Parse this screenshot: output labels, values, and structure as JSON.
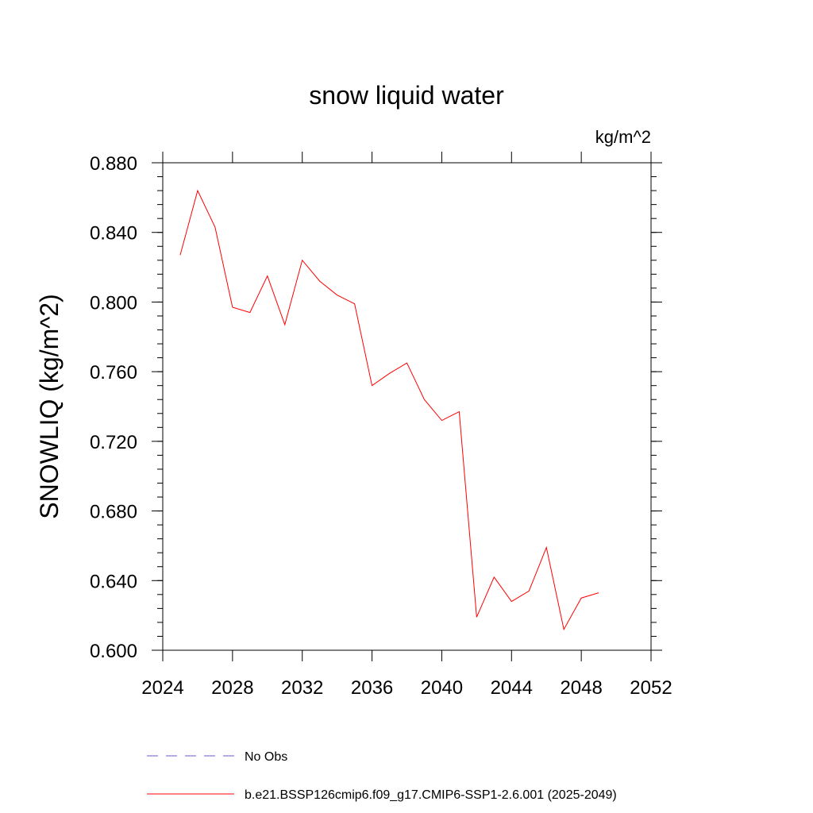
{
  "chart_data": {
    "type": "line",
    "title": "snow liquid water",
    "units_label": "kg/m^2",
    "ylabel": "SNOWLIQ  (kg/m^2)",
    "xlabel": "",
    "xlim": [
      2024,
      2052
    ],
    "ylim": [
      0.6,
      0.88
    ],
    "x_ticks": [
      "2024",
      "2028",
      "2032",
      "2036",
      "2040",
      "2044",
      "2048",
      "2052"
    ],
    "y_ticks": [
      "0.600",
      "0.640",
      "0.680",
      "0.720",
      "0.760",
      "0.800",
      "0.840",
      "0.880"
    ],
    "grid": false,
    "legend_position": "bottom",
    "series": [
      {
        "name": "No Obs",
        "color": "#6a5acd",
        "style": "dashed",
        "x": [],
        "values": []
      },
      {
        "name": "b.e21.BSSP126cmip6.f09_g17.CMIP6-SSP1-2.6.001 (2025-2049)",
        "color": "#ff0000",
        "style": "solid",
        "x": [
          2025,
          2026,
          2027,
          2028,
          2029,
          2030,
          2031,
          2032,
          2033,
          2034,
          2035,
          2036,
          2037,
          2038,
          2039,
          2040,
          2041,
          2042,
          2043,
          2044,
          2045,
          2046,
          2047,
          2048,
          2049
        ],
        "values": [
          0.827,
          0.864,
          0.843,
          0.797,
          0.794,
          0.815,
          0.787,
          0.824,
          0.812,
          0.804,
          0.799,
          0.752,
          0.759,
          0.765,
          0.744,
          0.732,
          0.737,
          0.619,
          0.642,
          0.628,
          0.634,
          0.659,
          0.612,
          0.63,
          0.633
        ]
      }
    ]
  }
}
